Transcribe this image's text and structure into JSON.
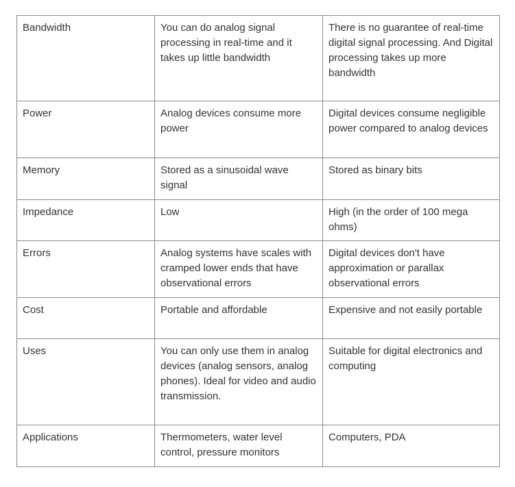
{
  "rows": [
    {
      "feature": "Bandwidth",
      "analog": "You can do analog signal processing in real-time and it takes up little bandwidth",
      "digital": "There is no guarantee of real-time digital signal processing. And Digital processing takes up more bandwidth"
    },
    {
      "feature": "Power",
      "analog": "Analog devices consume more power",
      "digital": "Digital devices consume negligible power compared to analog devices"
    },
    {
      "feature": "Memory",
      "analog": "Stored as a sinusoidal wave signal",
      "digital": "Stored as binary bits"
    },
    {
      "feature": "Impedance",
      "analog": "Low",
      "digital": "High (in the order of 100 mega ohms)"
    },
    {
      "feature": "Errors",
      "analog": "Analog systems have scales with cramped lower ends that have observational errors",
      "digital": "Digital devices don't have approximation or parallax observational errors"
    },
    {
      "feature": "Cost",
      "analog": "Portable and affordable",
      "digital": "Expensive and not easily portable"
    },
    {
      "feature": "Uses",
      "analog": "You can only use them in analog devices (analog sensors, analog phones). Ideal for video and audio transmission.",
      "digital": "Suitable for digital electronics and computing"
    },
    {
      "feature": "Applications",
      "analog": "Thermometers, water level control, pressure monitors",
      "digital": "Computers, PDA"
    }
  ]
}
